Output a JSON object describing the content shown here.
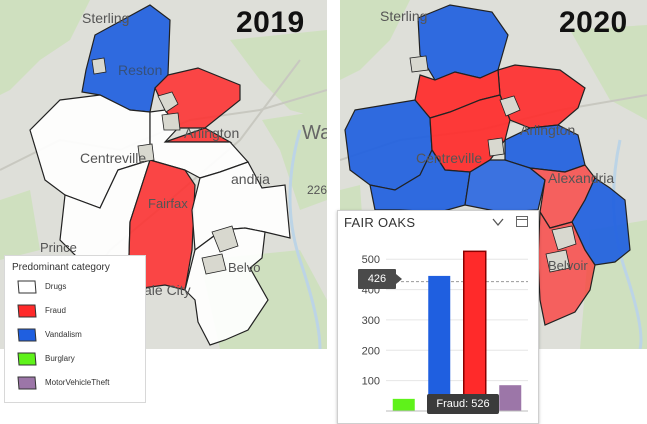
{
  "colors": {
    "drugs": "#ffffff",
    "fraud": "#ff2a2a",
    "vandalism": "#1f5fe0",
    "burglary": "#5ff21a",
    "motor_vehicle_theft": "#9c76a8",
    "basemap_green": "#cfe0bf",
    "basemap_gray": "#dedfd9",
    "enclave_gray": "#d8d8cf"
  },
  "map_2019": {
    "year_label": "2019",
    "place_labels": {
      "sterling": "Sterling",
      "reston": "Reston",
      "arlington": "Arlington",
      "washington": "Wa",
      "centreville": "Centreville",
      "alexandria": "andria",
      "fairfax": "Fairfax",
      "prince": "Prince",
      "lake_city": "ale City",
      "belvoir": "Belvo",
      "route": "226"
    },
    "legend": {
      "title": "Predominant category",
      "items": [
        {
          "label": "Drugs",
          "color_key": "drugs"
        },
        {
          "label": "Fraud",
          "color_key": "fraud"
        },
        {
          "label": "Vandalism",
          "color_key": "vandalism"
        },
        {
          "label": "Burglary",
          "color_key": "burglary"
        },
        {
          "label": "MotorVehicleTheft",
          "color_key": "motor_vehicle_theft"
        }
      ]
    }
  },
  "map_2020": {
    "year_label": "2020",
    "place_labels": {
      "sterling": "Sterling",
      "arlington": "Arlington",
      "centreville": "Centreville",
      "alexandria": "Alexandria",
      "belvoir": "Belvoir"
    }
  },
  "popup": {
    "title": "FAIR OAKS",
    "chevron_icon": "chevron-down-icon",
    "dock_icon": "dock-icon",
    "value_callout": "426",
    "tooltip": "Fraud: 526"
  },
  "chart_data": {
    "type": "bar",
    "title": "FAIR OAKS",
    "categories": [
      "Burglary",
      "Vandalism",
      "Fraud",
      "MotorVehicleTheft"
    ],
    "values": [
      40,
      445,
      526,
      85
    ],
    "colors": [
      "#5ff21a",
      "#1f5fe0",
      "#ff2a2a",
      "#9c76a8"
    ],
    "selected_category": "Fraud",
    "yticks": [
      100,
      200,
      300,
      400,
      500
    ],
    "ylim": [
      0,
      560
    ],
    "reference_value": 426,
    "grid": true,
    "xlabel": "",
    "ylabel": ""
  }
}
